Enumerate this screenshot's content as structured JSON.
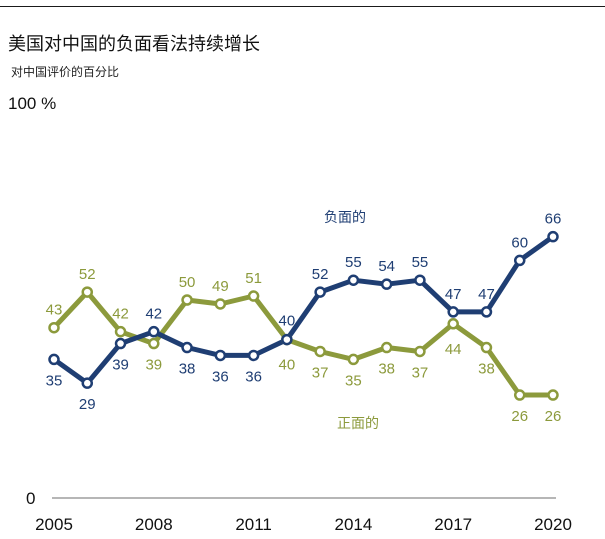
{
  "header": {
    "title": "美国对中国的负面看法持续增长",
    "subtitle": "对中国评价的百分比"
  },
  "colors": {
    "negative": "#1f3e73",
    "positive": "#8c9a3c",
    "axis": "#8a8a8a",
    "text": "#111111"
  },
  "chart_data": {
    "type": "line",
    "title": "美国对中国的负面看法持续增长",
    "subtitle": "对中国评价的百分比",
    "x": [
      2005,
      2006,
      2007,
      2008,
      2009,
      2010,
      2011,
      2012,
      2013,
      2014,
      2015,
      2016,
      2017,
      2018,
      2019,
      2020
    ],
    "x_tick_labels": [
      "2005",
      "2008",
      "2011",
      "2014",
      "2017",
      "2020"
    ],
    "y_tick_labels": [
      "100 %",
      "0"
    ],
    "ylim": [
      0,
      100
    ],
    "xlabel": "",
    "ylabel": "",
    "grid": false,
    "series": [
      {
        "name": "负面的",
        "key": "negative",
        "values": [
          35,
          29,
          39,
          42,
          38,
          36,
          36,
          40,
          52,
          55,
          54,
          55,
          47,
          47,
          60,
          66
        ]
      },
      {
        "name": "正面的",
        "key": "positive",
        "values": [
          43,
          52,
          42,
          39,
          50,
          49,
          51,
          40,
          37,
          35,
          38,
          37,
          44,
          38,
          26,
          26
        ]
      }
    ]
  }
}
